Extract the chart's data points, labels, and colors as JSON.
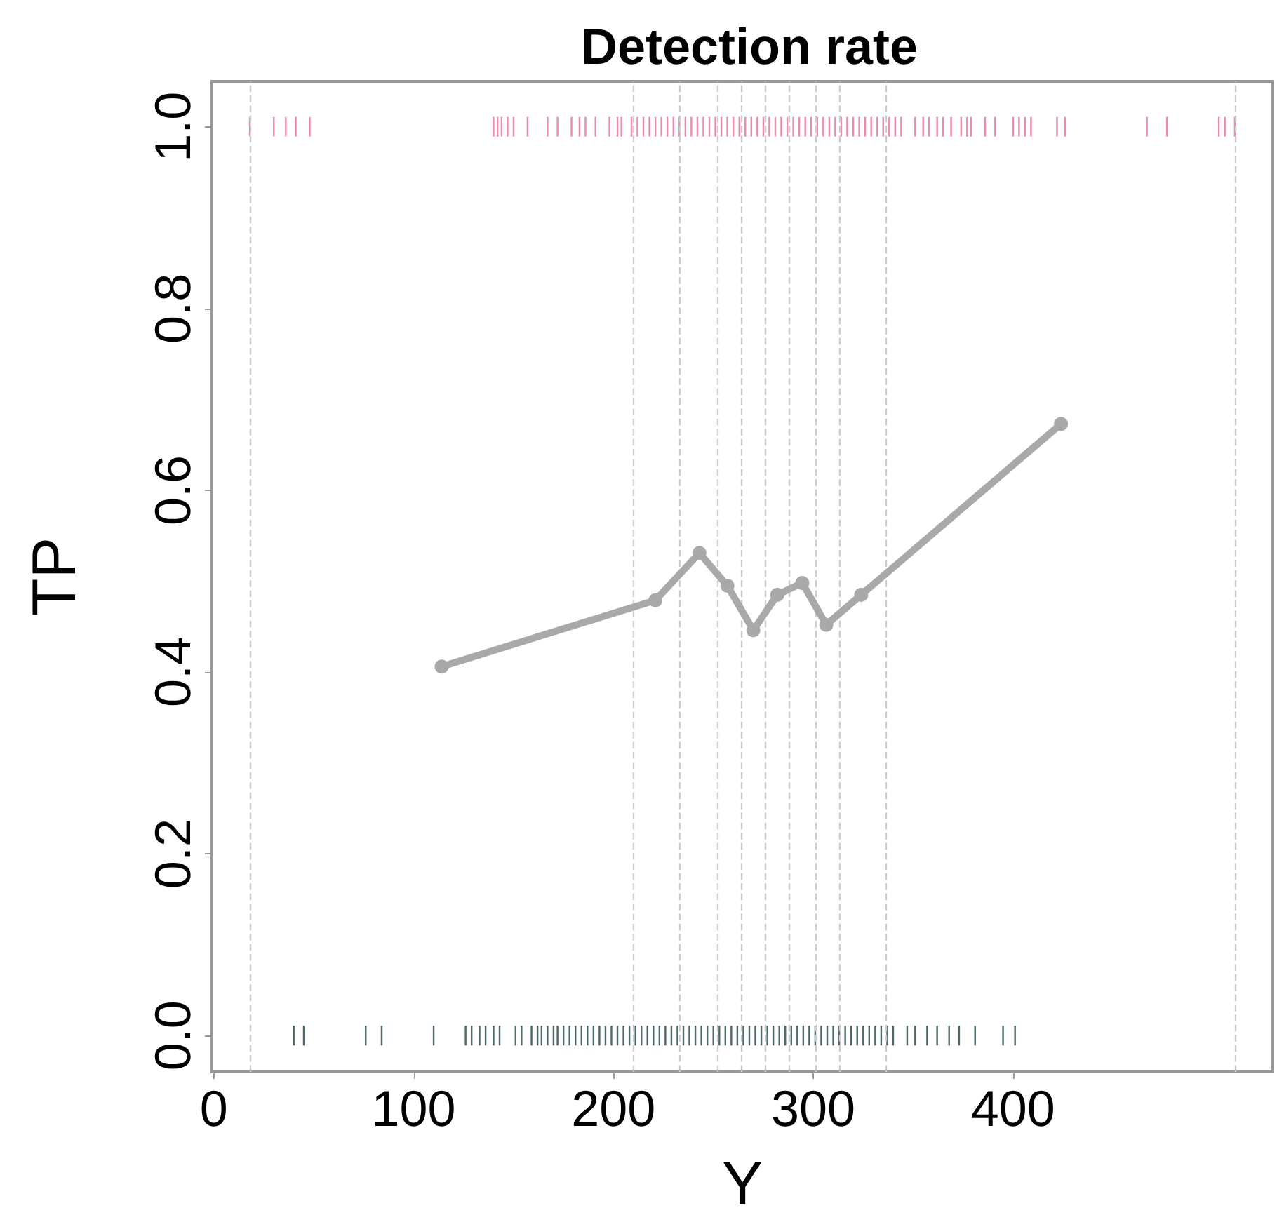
{
  "chart_data": {
    "type": "scatter",
    "title": "Detection rate",
    "xlabel": "Y",
    "ylabel": "TP",
    "xlim": [
      -1,
      530
    ],
    "xticks": [
      0,
      100,
      200,
      300,
      400
    ],
    "ylim": [
      -0.04,
      1.05
    ],
    "yticks": [
      {
        "value": 0,
        "label": "0.0"
      },
      {
        "value": 0.2,
        "label": "0.2"
      },
      {
        "value": 0.4,
        "label": "0.4"
      },
      {
        "value": 0.6,
        "label": "0.6"
      },
      {
        "value": 0.8,
        "label": "0.8"
      },
      {
        "value": 1,
        "label": "1.0"
      }
    ],
    "grid": false,
    "line_style": "solid",
    "series": [
      {
        "color": "#e8769a",
        "x": [
          18,
          30,
          36,
          41,
          48,
          140,
          142,
          144,
          147,
          150,
          157,
          167,
          172,
          179,
          183,
          186,
          191,
          198,
          202,
          204,
          209,
          212,
          215,
          218,
          221,
          224,
          227,
          230,
          233,
          236,
          239,
          242,
          245,
          248,
          251,
          254,
          257,
          260,
          263,
          266,
          269,
          272,
          275,
          278,
          281,
          284,
          287,
          290,
          293,
          296,
          299,
          302,
          305,
          308,
          311,
          314,
          317,
          320,
          323,
          326,
          329,
          332,
          335,
          338,
          341,
          344,
          351,
          355,
          358,
          362,
          365,
          369,
          374,
          377,
          379,
          386,
          391,
          400,
          403,
          406,
          409,
          422,
          426,
          467,
          477,
          503,
          506,
          511
        ],
        "values": [
          1,
          1,
          1,
          1,
          1,
          1,
          1,
          1,
          1,
          1,
          1,
          1,
          1,
          1,
          1,
          1,
          1,
          1,
          1,
          1,
          1,
          1,
          1,
          1,
          1,
          1,
          1,
          1,
          1,
          1,
          1,
          1,
          1,
          1,
          1,
          1,
          1,
          1,
          1,
          1,
          1,
          1,
          1,
          1,
          1,
          1,
          1,
          1,
          1,
          1,
          1,
          1,
          1,
          1,
          1,
          1,
          1,
          1,
          1,
          1,
          1,
          1,
          1,
          1,
          1,
          1,
          1,
          1,
          1,
          1,
          1,
          1,
          1,
          1,
          1,
          1,
          1,
          1,
          1,
          1,
          1,
          1,
          1,
          1,
          1,
          1,
          1,
          1
        ]
      },
      {
        "color": "#2f4f4f",
        "x": [
          40,
          45,
          76,
          84,
          110,
          126,
          129,
          133,
          136,
          140,
          143,
          151,
          154,
          159,
          162,
          164,
          167,
          170,
          172,
          175,
          178,
          181,
          184,
          187,
          190,
          193,
          196,
          199,
          202,
          205,
          208,
          211,
          214,
          217,
          220,
          223,
          226,
          229,
          232,
          235,
          238,
          241,
          244,
          247,
          250,
          253,
          256,
          259,
          262,
          265,
          268,
          271,
          274,
          277,
          280,
          283,
          286,
          289,
          292,
          295,
          298,
          301,
          304,
          307,
          310,
          313,
          316,
          319,
          322,
          325,
          328,
          331,
          334,
          337,
          340,
          347,
          351,
          357,
          362,
          368,
          373,
          381,
          395,
          401
        ],
        "values": [
          0,
          0,
          0,
          0,
          0,
          0,
          0,
          0,
          0,
          0,
          0,
          0,
          0,
          0,
          0,
          0,
          0,
          0,
          0,
          0,
          0,
          0,
          0,
          0,
          0,
          0,
          0,
          0,
          0,
          0,
          0,
          0,
          0,
          0,
          0,
          0,
          0,
          0,
          0,
          0,
          0,
          0,
          0,
          0,
          0,
          0,
          0,
          0,
          0,
          0,
          0,
          0,
          0,
          0,
          0,
          0,
          0,
          0,
          0,
          0,
          0,
          0,
          0,
          0,
          0,
          0,
          0,
          0,
          0,
          0,
          0,
          0,
          0,
          0,
          0,
          0,
          0,
          0,
          0,
          0,
          0,
          0,
          0,
          0
        ]
      },
      {
        "type": "line",
        "marker": "circle",
        "color": "#a9a9a9",
        "x": [
          114,
          221,
          243,
          257,
          270,
          282,
          294.5,
          306.5,
          324,
          424
        ],
        "values": [
          0.406,
          0.479,
          0.531,
          0.495,
          0.446,
          0.485,
          0.498,
          0.452,
          0.485,
          0.673
        ]
      }
    ],
    "ref_lines": [
      {
        "axis": "x",
        "value": 18,
        "color": "#cccccc",
        "line_style": "dashed"
      },
      {
        "axis": "x",
        "value": 210,
        "color": "#cccccc",
        "line_style": "dashed"
      },
      {
        "axis": "x",
        "value": 233,
        "color": "#cccccc",
        "line_style": "dashed"
      },
      {
        "axis": "x",
        "value": 252,
        "color": "#cccccc",
        "line_style": "dashed"
      },
      {
        "axis": "x",
        "value": 264,
        "color": "#cccccc",
        "line_style": "dashed"
      },
      {
        "axis": "x",
        "value": 276,
        "color": "#cccccc",
        "line_style": "dashed"
      },
      {
        "axis": "x",
        "value": 288,
        "color": "#cccccc",
        "line_style": "dashed"
      },
      {
        "axis": "x",
        "value": 301,
        "color": "#cccccc",
        "line_style": "dashed"
      },
      {
        "axis": "x",
        "value": 313,
        "color": "#cccccc",
        "line_style": "dashed"
      },
      {
        "axis": "x",
        "value": 336,
        "color": "#cccccc",
        "line_style": "dashed"
      },
      {
        "axis": "x",
        "value": 511,
        "color": "#cccccc",
        "line_style": "dashed"
      }
    ]
  }
}
